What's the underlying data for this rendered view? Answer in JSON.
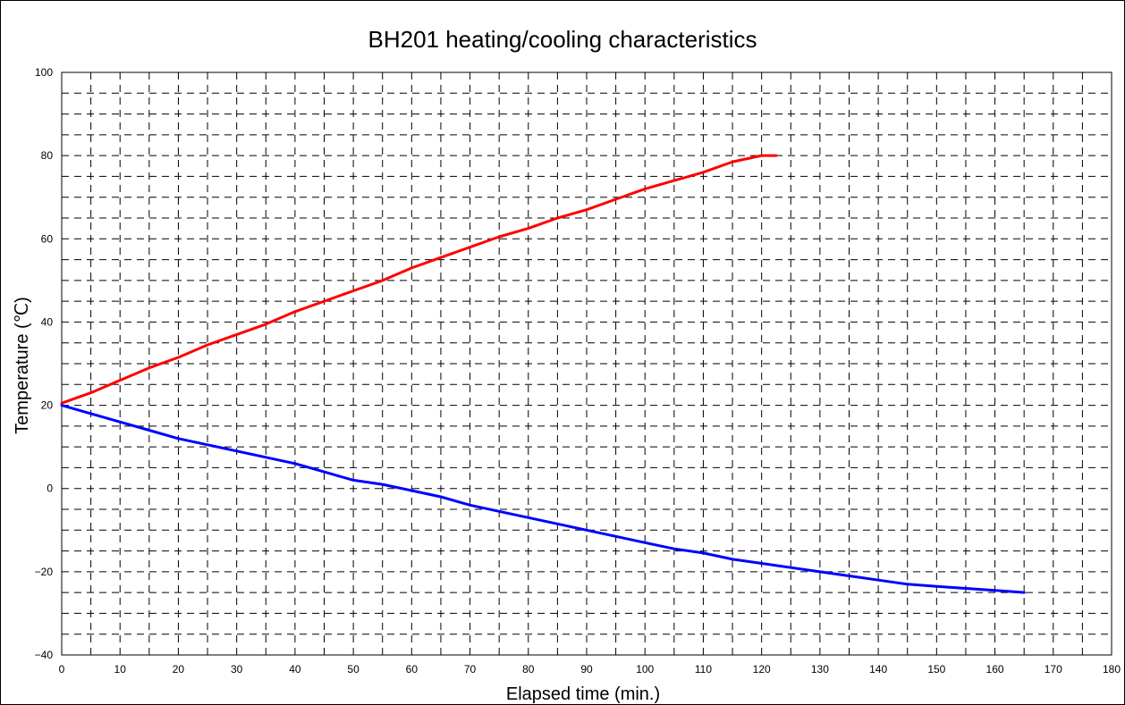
{
  "chart_data": {
    "type": "line",
    "title": "BH201 heating/cooling characteristics",
    "xlabel": "Elapsed time (min.)",
    "ylabel": "Temperature (℃)",
    "xlim": [
      0,
      180
    ],
    "ylim": [
      -40,
      100
    ],
    "x_ticks": [
      0,
      10,
      20,
      30,
      40,
      50,
      60,
      70,
      80,
      90,
      100,
      110,
      120,
      130,
      140,
      150,
      160,
      170,
      180
    ],
    "y_ticks": [
      -40,
      -20,
      0,
      20,
      40,
      60,
      80,
      100
    ],
    "grid": "dashed",
    "series": [
      {
        "color": "#ff0000",
        "points": [
          [
            0,
            20.5
          ],
          [
            5,
            23
          ],
          [
            10,
            26
          ],
          [
            15,
            29
          ],
          [
            20,
            31.5
          ],
          [
            25,
            34.5
          ],
          [
            30,
            37
          ],
          [
            35,
            39.5
          ],
          [
            40,
            42.5
          ],
          [
            45,
            45
          ],
          [
            50,
            47.5
          ],
          [
            55,
            50
          ],
          [
            60,
            53
          ],
          [
            65,
            55.5
          ],
          [
            70,
            58
          ],
          [
            75,
            60.5
          ],
          [
            80,
            62.5
          ],
          [
            85,
            65
          ],
          [
            90,
            67
          ],
          [
            95,
            69.5
          ],
          [
            100,
            72
          ],
          [
            105,
            74
          ],
          [
            110,
            76
          ],
          [
            115,
            78.5
          ],
          [
            120,
            80
          ],
          [
            122.5,
            80
          ]
        ]
      },
      {
        "color": "#0000ff",
        "points": [
          [
            0,
            20
          ],
          [
            5,
            18
          ],
          [
            10,
            16
          ],
          [
            15,
            14
          ],
          [
            20,
            12
          ],
          [
            25,
            10.5
          ],
          [
            30,
            9
          ],
          [
            35,
            7.5
          ],
          [
            40,
            6
          ],
          [
            45,
            4
          ],
          [
            50,
            2
          ],
          [
            55,
            1
          ],
          [
            60,
            -0.5
          ],
          [
            65,
            -2
          ],
          [
            70,
            -4
          ],
          [
            75,
            -5.5
          ],
          [
            80,
            -7
          ],
          [
            85,
            -8.5
          ],
          [
            90,
            -10
          ],
          [
            95,
            -11.5
          ],
          [
            100,
            -13
          ],
          [
            105,
            -14.5
          ],
          [
            110,
            -15.5
          ],
          [
            115,
            -17
          ],
          [
            120,
            -18
          ],
          [
            125,
            -19
          ],
          [
            130,
            -20
          ],
          [
            135,
            -21
          ],
          [
            140,
            -22
          ],
          [
            145,
            -23
          ],
          [
            150,
            -23.5
          ],
          [
            155,
            -24
          ],
          [
            160,
            -24.5
          ],
          [
            165,
            -25
          ]
        ]
      }
    ]
  }
}
